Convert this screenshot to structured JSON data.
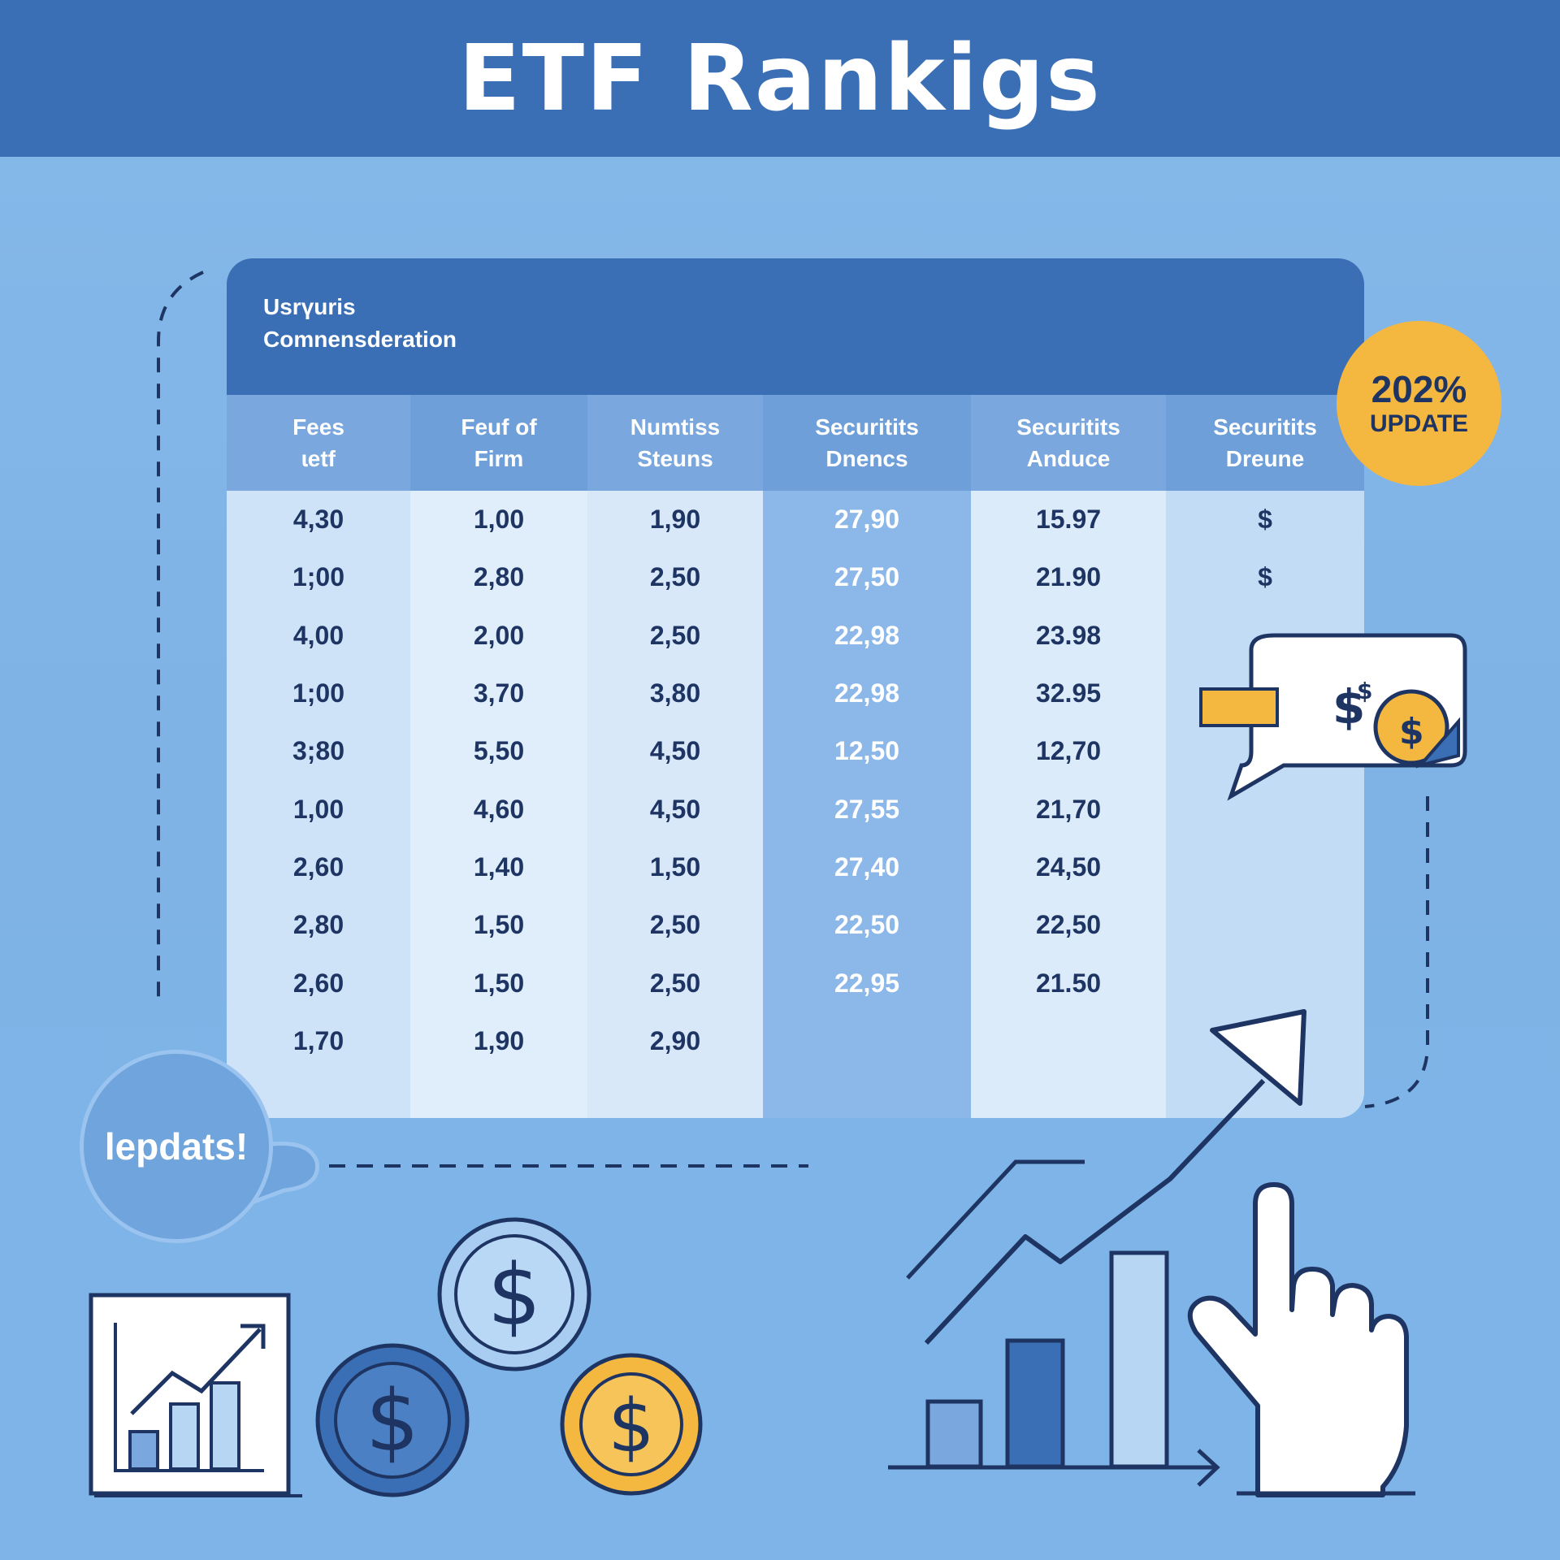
{
  "header": {
    "title": "ETF Rankigs"
  },
  "panel": {
    "title_line1": "Usrүuris",
    "title_line2": "Comnensderation"
  },
  "table": {
    "columns": [
      {
        "line1": "Fees",
        "line2": "ɩetf"
      },
      {
        "line1": "Feuf of",
        "line2": "Firm"
      },
      {
        "line1": "Numtiss",
        "line2": "Steuns"
      },
      {
        "line1": "Securitits",
        "line2": "Dnencs"
      },
      {
        "line1": "Securitits",
        "line2": "Anduce"
      },
      {
        "line1": "Securitits",
        "line2": "Dreune"
      }
    ],
    "rows": [
      [
        "4,30",
        "1,00",
        "1,90",
        "27,90",
        "15.97",
        "$"
      ],
      [
        "1;00",
        "2,80",
        "2,50",
        "27,50",
        "21.90",
        "$"
      ],
      [
        "4,00",
        "2,00",
        "2,50",
        "22,98",
        "23.98",
        ""
      ],
      [
        "1;00",
        "3,70",
        "3,80",
        "22,98",
        "32.95",
        ""
      ],
      [
        "3;80",
        "5,50",
        "4,50",
        "12,50",
        "12,70",
        ""
      ],
      [
        "1,00",
        "4,60",
        "4,50",
        "27,55",
        "21,70",
        ""
      ],
      [
        "2,60",
        "1,40",
        "1,50",
        "27,40",
        "24,50",
        ""
      ],
      [
        "2,80",
        "1,50",
        "2,50",
        "22,50",
        "22,50",
        ""
      ],
      [
        "2,60",
        "1,50",
        "2,50",
        "22,95",
        "21.50",
        ""
      ],
      [
        "1,70",
        "1,90",
        "2,90",
        "",
        "",
        ""
      ]
    ]
  },
  "badge": {
    "percent": "202%",
    "label": "UPDATE"
  },
  "bubble": {
    "text": "lepdats!"
  },
  "icons": [
    "dollar-speech-bubble-icon",
    "trend-arrow-icon",
    "bar-chart-icon",
    "pointing-hand-icon",
    "chart-frame-icon",
    "dollar-coin-icon"
  ],
  "colors": {
    "header": "#3a6fb5",
    "accent": "#f4b740",
    "ink": "#1e3563",
    "background": "#7fb3e6"
  }
}
